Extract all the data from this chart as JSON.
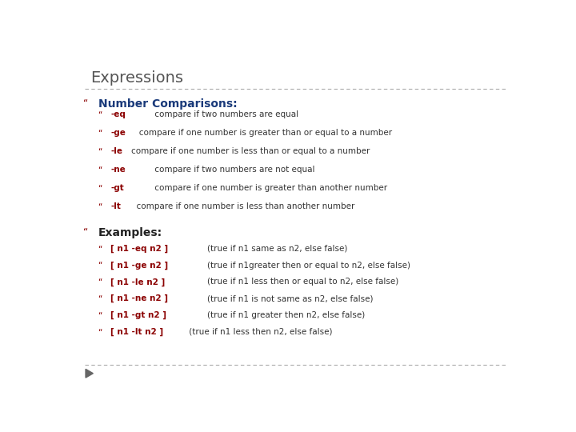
{
  "title": "Expressions",
  "title_color": "#555555",
  "title_fontsize": 14,
  "background_color": "#ffffff",
  "section1_header": "Number Comparisons:",
  "section1_header_color": "#1a3a7a",
  "section1_header_fontsize": 10,
  "section1_bullet_color": "#8b0000",
  "section1_items": [
    [
      "-eq",
      "         compare if two numbers are equal"
    ],
    [
      "-ge",
      "   compare if one number is greater than or equal to a number"
    ],
    [
      "-le",
      "compare if one number is less than or equal to a number"
    ],
    [
      "-ne",
      "         compare if two numbers are not equal"
    ],
    [
      "-gt",
      "         compare if one number is greater than another number"
    ],
    [
      "-lt",
      "  compare if one number is less than another number"
    ]
  ],
  "section2_header": "Examples:",
  "section2_header_color": "#222222",
  "section2_header_fontsize": 10,
  "section2_bullet_color": "#8b0000",
  "section2_items": [
    [
      "[ n1 -eq n2 ]",
      "        (true if n1 same as n2, else false)"
    ],
    [
      "[ n1 -ge n2 ]",
      "        (true if n1greater then or equal to n2, else false)"
    ],
    [
      "[ n1 -le n2 ]",
      "        (true if n1 less then or equal to n2, else false)"
    ],
    [
      "[ n1 -ne n2 ]",
      "        (true if n1 is not same as n2, else false)"
    ],
    [
      "[ n1 -gt n2 ]",
      "        (true if n1 greater then n2, else false)"
    ],
    [
      "[ n1 -lt n2 ]",
      " (true if n1 less then n2, else false)"
    ]
  ],
  "dashed_line_color": "#aaaaaa",
  "bullet_char": "“",
  "arrow_color": "#666666",
  "item_fontsize": 7.5,
  "item_code_color": "#8b0000",
  "item_text_color": "#333333"
}
